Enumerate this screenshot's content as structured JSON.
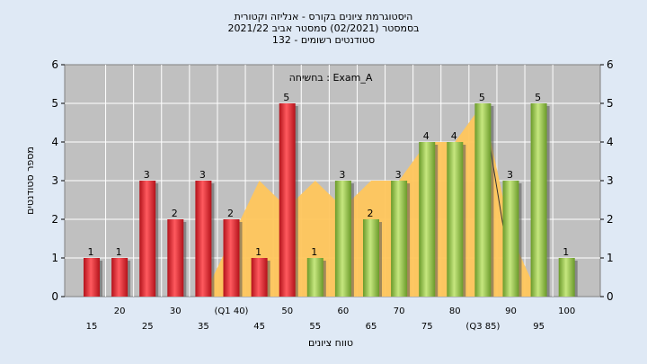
{
  "chart_data": {
    "type": "bar",
    "title_lines": [
      "היסטוגרמת ציונים בקורס - אנליזה וקטורית",
      "בסמסטר  (02/2021)  סמסטר אביב 2021/22",
      "סטודנטים רשומים - 132"
    ],
    "inner_title": "בחשיחה : Exam_A",
    "xlabel": "טווח ציונים",
    "ylabel": "מספר סטודנטים",
    "ylim": [
      0,
      6
    ],
    "yticks": [
      "0",
      "1",
      "2",
      "3",
      "4",
      "5",
      "6"
    ],
    "grid": true,
    "categories": [
      "15",
      "20",
      "25",
      "30",
      "35",
      "40",
      "45",
      "50",
      "55",
      "60",
      "65",
      "70",
      "75",
      "80",
      "85",
      "90",
      "95",
      "100"
    ],
    "x_tick_labels": [
      "15",
      "20",
      "25",
      "30",
      "35",
      "(Q1 40)",
      "45",
      "50",
      "55",
      "60",
      "65",
      "70",
      "75",
      "80",
      "(Q3 85)",
      "90",
      "95",
      "100"
    ],
    "values": [
      1,
      1,
      3,
      2,
      3,
      2,
      1,
      5,
      1,
      3,
      2,
      3,
      4,
      4,
      5,
      3,
      5,
      1
    ],
    "value_labels": [
      "1",
      "1",
      "3",
      "2",
      "3",
      "2",
      "1",
      "5",
      "1",
      "3",
      "2",
      "3",
      "4",
      "4",
      "5",
      "3",
      "5",
      "1"
    ],
    "bar_groups": [
      "low",
      "low",
      "low",
      "low",
      "low",
      "low",
      "low",
      "low",
      "high",
      "high",
      "high",
      "high",
      "high",
      "high",
      "high",
      "high",
      "high",
      "high"
    ],
    "distribution_area": [
      0,
      0,
      0,
      0,
      0,
      1.5,
      3,
      2.3,
      3,
      2.3,
      3,
      3,
      4,
      4,
      5,
      1.6,
      0,
      0
    ],
    "colors": {
      "low_bar": "#e8262b",
      "high_bar": "#9ccc4e",
      "area": "#ffc65c",
      "plot_bg": "#c0c0c0",
      "background": "#dfe9f5"
    }
  }
}
